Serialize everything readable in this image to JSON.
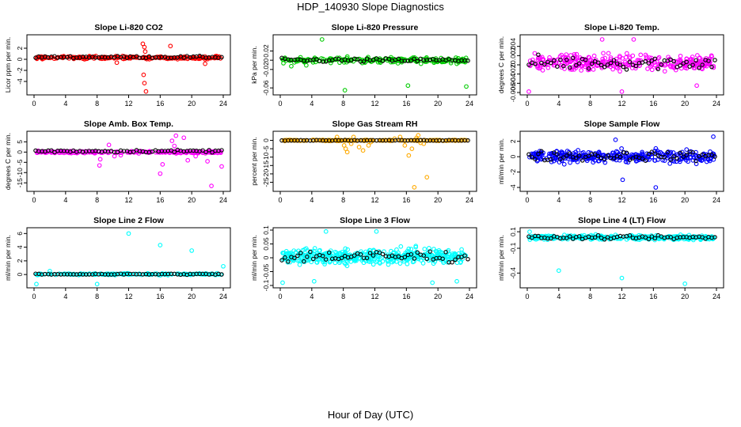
{
  "figure": {
    "title": "HDP_140930  Slope Diagnostics",
    "xlabel": "Hour of Day (UTC)"
  },
  "chart_data": [
    {
      "type": "scatter",
      "title": "Slope Li-820 CO2",
      "ylabel": "Licor ppm per min.",
      "xlim": [
        0,
        24
      ],
      "ylim": [
        -6,
        4
      ],
      "xticks": [
        0,
        4,
        8,
        12,
        16,
        20,
        24
      ],
      "yticks": [
        -4,
        -2,
        0,
        2
      ],
      "color": "#ff0000",
      "base": 0.3,
      "noise": 0.25,
      "n": 220,
      "outliers": [
        [
          13.8,
          2.8
        ],
        [
          14.0,
          2.2
        ],
        [
          14.1,
          1.4
        ],
        [
          13.9,
          -2.8
        ],
        [
          14.0,
          -4.3
        ],
        [
          14.2,
          -5.8
        ],
        [
          17.3,
          2.4
        ],
        [
          21.7,
          -0.8
        ],
        [
          10.5,
          -0.6
        ]
      ],
      "black_base": 0.4,
      "black_noise": 0.18
    },
    {
      "type": "scatter",
      "title": "Slope Li-820 Pressure",
      "ylabel": "kPa per min.",
      "xlim": [
        0,
        24
      ],
      "ylim": [
        -0.07,
        0.05
      ],
      "xticks": [
        0,
        4,
        8,
        12,
        16,
        20,
        24
      ],
      "yticks": [
        -0.06,
        -0.02,
        0.0,
        0.02
      ],
      "color": "#00cc00",
      "base": 0.0,
      "noise": 0.006,
      "n": 220,
      "outliers": [
        [
          5.3,
          0.045
        ],
        [
          8.2,
          -0.065
        ],
        [
          16.2,
          -0.055
        ],
        [
          23.6,
          -0.057
        ],
        [
          1.4,
          -0.013
        ],
        [
          3.3,
          -0.011
        ]
      ],
      "black_base": 0.0,
      "black_noise": 0.004
    },
    {
      "type": "scatter",
      "title": "Slope Li-820 Temp.",
      "ylabel": "degrees C per min.",
      "xlim": [
        0,
        24
      ],
      "ylim": [
        -0.006,
        0.006
      ],
      "xticks": [
        0,
        4,
        8,
        12,
        16,
        20,
        24
      ],
      "yticks": [
        -0.006,
        -0.004,
        -0.002,
        0.0,
        0.002,
        0.004
      ],
      "color": "#ff00ff",
      "base": 0.0005,
      "noise": 0.0016,
      "n": 300,
      "outliers": [
        [
          9.5,
          0.0055
        ],
        [
          13.5,
          0.0055
        ],
        [
          21.5,
          -0.0045
        ],
        [
          12.0,
          -0.0058
        ],
        [
          0.2,
          -0.0058
        ]
      ],
      "black_base": 0.0005,
      "black_noise": 0.0015
    },
    {
      "type": "scatter",
      "title": "Slope Amb. Box Temp.",
      "ylabel": "degrees C per min.",
      "xlim": [
        0,
        24
      ],
      "ylim": [
        -18,
        9
      ],
      "xticks": [
        0,
        4,
        8,
        12,
        16,
        20,
        24
      ],
      "yticks": [
        -15,
        -10,
        -5,
        0,
        5
      ],
      "color": "#ff00ff",
      "base": 0.0,
      "noise": 0.6,
      "n": 200,
      "outliers": [
        [
          8.3,
          -6.5
        ],
        [
          8.4,
          -3.5
        ],
        [
          9.5,
          3.5
        ],
        [
          10.2,
          -2.0
        ],
        [
          16.0,
          -10.5
        ],
        [
          16.3,
          -6.0
        ],
        [
          17.5,
          5.5
        ],
        [
          17.8,
          3.0
        ],
        [
          18.0,
          8.0
        ],
        [
          19.0,
          7.0
        ],
        [
          19.5,
          -4.0
        ],
        [
          20.5,
          -2.0
        ],
        [
          22.0,
          -4.5
        ],
        [
          22.5,
          -16.5
        ],
        [
          23.8,
          -7.0
        ],
        [
          7.6,
          0.0
        ],
        [
          11.0,
          -1.5
        ]
      ],
      "black_base": 0.5,
      "black_noise": 0.6
    },
    {
      "type": "scatter",
      "title": "Slope Gas Stream RH",
      "ylabel": "percent per min.",
      "xlim": [
        0,
        24
      ],
      "ylim": [
        -29,
        4
      ],
      "xticks": [
        0,
        4,
        8,
        12,
        16,
        20,
        24
      ],
      "yticks": [
        -25,
        -20,
        -15,
        -10,
        -5,
        0
      ],
      "color": "#ffaa00",
      "base": 0.0,
      "noise": 0.3,
      "n": 180,
      "outliers": [
        [
          8.1,
          -3.0
        ],
        [
          8.3,
          -5.0
        ],
        [
          8.5,
          -7.0
        ],
        [
          9.0,
          -2.0
        ],
        [
          9.3,
          2.0
        ],
        [
          10.0,
          -4.0
        ],
        [
          10.5,
          -6.0
        ],
        [
          11.2,
          -3.0
        ],
        [
          11.5,
          -1.0
        ],
        [
          14.5,
          1.0
        ],
        [
          15.2,
          2.0
        ],
        [
          15.8,
          -3.0
        ],
        [
          16.3,
          -9.0
        ],
        [
          16.7,
          -5.0
        ],
        [
          17.0,
          -28.0
        ],
        [
          17.3,
          1.5
        ],
        [
          17.5,
          3.0
        ],
        [
          17.8,
          -1.5
        ],
        [
          18.2,
          -2.0
        ],
        [
          18.6,
          -22.0
        ],
        [
          7.2,
          2.0
        ]
      ],
      "black_base": 0.0,
      "black_noise": 0.15
    },
    {
      "type": "scatter",
      "title": "Slope Sample Flow",
      "ylabel": "ml/min per min.",
      "xlim": [
        0,
        24
      ],
      "ylim": [
        -4.2,
        3
      ],
      "xticks": [
        0,
        4,
        8,
        12,
        16,
        20,
        24
      ],
      "yticks": [
        -4,
        -2,
        0,
        2
      ],
      "color": "#0000ff",
      "base": 0.0,
      "noise": 0.75,
      "n": 320,
      "outliers": [
        [
          16.3,
          -4.0
        ],
        [
          12.1,
          -3.0
        ],
        [
          23.6,
          2.6
        ],
        [
          11.2,
          2.2
        ]
      ],
      "black_base": 0.1,
      "black_noise": 0.6
    },
    {
      "type": "scatter",
      "title": "Slope Line 2 Flow",
      "ylabel": "ml/min per min.",
      "xlim": [
        0,
        24
      ],
      "ylim": [
        -1.6,
        6.5
      ],
      "xticks": [
        0,
        4,
        8,
        12,
        16,
        20,
        24
      ],
      "yticks": [
        0,
        2,
        4,
        6
      ],
      "color": "#00ffff",
      "base": 0.05,
      "noise": 0.12,
      "n": 180,
      "outliers": [
        [
          12.0,
          6.0
        ],
        [
          16.0,
          4.3
        ],
        [
          20.0,
          3.5
        ],
        [
          24.0,
          1.2
        ],
        [
          8.0,
          -1.4
        ],
        [
          0.3,
          -1.4
        ],
        [
          2.0,
          0.5
        ]
      ],
      "black_base": 0.05,
      "black_noise": 0.08
    },
    {
      "type": "scatter",
      "title": "Slope Line 3 Flow",
      "ylabel": "ml/min per min.",
      "xlim": [
        0,
        24
      ],
      "ylim": [
        -0.1,
        0.1
      ],
      "xticks": [
        0,
        4,
        8,
        12,
        16,
        20,
        24
      ],
      "yticks": [
        -0.1,
        -0.05,
        0.0,
        0.05,
        0.1
      ],
      "color": "#00ffff",
      "base": 0.005,
      "noise": 0.026,
      "n": 420,
      "outliers": [
        [
          5.8,
          0.095
        ],
        [
          12.2,
          0.095
        ],
        [
          0.3,
          -0.09
        ],
        [
          4.3,
          -0.085
        ],
        [
          19.3,
          -0.09
        ],
        [
          22.4,
          -0.085
        ]
      ],
      "black_base": 0.005,
      "black_noise": 0.022
    },
    {
      "type": "scatter",
      "title": "Slope Line 4 (LT) Flow",
      "ylabel": "ml/min per min.",
      "xlim": [
        0,
        24
      ],
      "ylim": [
        -0.55,
        0.12
      ],
      "xticks": [
        0,
        4,
        8,
        12,
        16,
        20,
        24
      ],
      "yticks": [
        -0.4,
        -0.1,
        0.1
      ],
      "color": "#00ffff",
      "base": 0.03,
      "noise": 0.025,
      "n": 340,
      "outliers": [
        [
          4.0,
          -0.37
        ],
        [
          12.0,
          -0.46
        ],
        [
          20.0,
          -0.53
        ],
        [
          0.3,
          0.1
        ]
      ],
      "black_base": 0.03,
      "black_noise": 0.02
    }
  ]
}
